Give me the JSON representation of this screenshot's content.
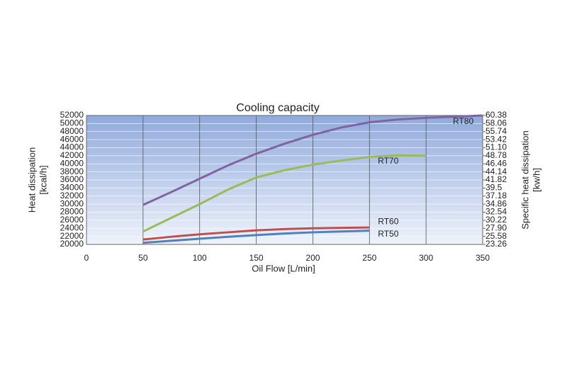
{
  "chart_data": {
    "type": "line",
    "title": "Cooling capacity",
    "xlabel": "Oil Flow [L/min]",
    "ylabel": [
      "Heat dissipation",
      "[kcal/h]"
    ],
    "y2label": [
      "Specific heat dissipation",
      "[kw/h]"
    ],
    "x": [
      50,
      75,
      100,
      125,
      150,
      175,
      200,
      225,
      250,
      275,
      300,
      325,
      350
    ],
    "xlim": [
      0,
      350
    ],
    "xticks": [
      0,
      50,
      100,
      150,
      200,
      250,
      300,
      350
    ],
    "ylim": [
      20000,
      52000
    ],
    "yticks": [
      20000,
      22000,
      24000,
      26000,
      28000,
      30000,
      32000,
      34000,
      36000,
      38000,
      40000,
      42000,
      44000,
      46000,
      48000,
      50000,
      52000
    ],
    "y2lim": [
      23.26,
      60.38
    ],
    "y2ticks": [
      23.26,
      25.58,
      {
        "value": 27.9,
        "label": "27.90"
      },
      30.22,
      32.54,
      34.86,
      37.18,
      39.5,
      41.82,
      44.14,
      46.46,
      48.78,
      {
        "value": 51.1,
        "label": "51.10"
      },
      53.42,
      55.74,
      58.06,
      60.38
    ],
    "grid": true,
    "series": [
      {
        "name": "RT80",
        "color": "#8064a2",
        "values": [
          29800,
          33000,
          36300,
          39600,
          42500,
          45000,
          47200,
          49000,
          50300,
          51000,
          51400,
          51700,
          52000
        ]
      },
      {
        "name": "RT70",
        "color": "#9bbb59",
        "values": [
          23200,
          26600,
          30000,
          33600,
          36600,
          38400,
          39800,
          40800,
          41700,
          42100,
          42000,
          null,
          null
        ]
      },
      {
        "name": "RT60",
        "color": "#c0504d",
        "values": [
          21200,
          21900,
          22500,
          23000,
          23500,
          23800,
          24000,
          24100,
          24200,
          null,
          null,
          null,
          null
        ]
      },
      {
        "name": "RT50",
        "color": "#4f81bd",
        "values": [
          20400,
          20900,
          21400,
          21900,
          22300,
          22700,
          23000,
          23200,
          23400,
          null,
          null,
          null,
          null
        ]
      }
    ]
  }
}
